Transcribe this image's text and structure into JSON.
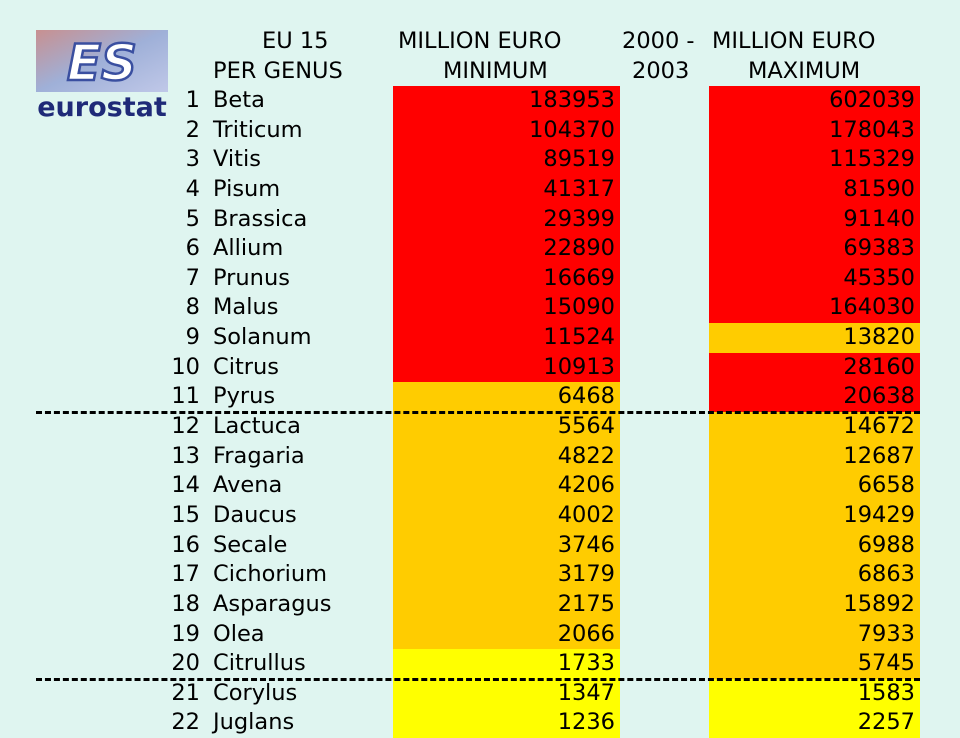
{
  "logo": {
    "text": "eurostat",
    "mark": "ES"
  },
  "headers": {
    "genus_line1": "EU 15",
    "genus_line2": "PER GENUS",
    "min_line1": "MILLION EURO",
    "min_line2": "MINIMUM",
    "period_line1": "2000 -",
    "period_line2": "2003",
    "max_line1": "MILLION EURO",
    "max_line2": "MAXIMUM"
  },
  "colors": {
    "background": "#dff5f0",
    "red": "#ff0000",
    "orange": "#ffcc00",
    "yellow": "#ffff00"
  },
  "rows": [
    {
      "rank": "1",
      "genus": "Beta",
      "min": "183953",
      "max": "602039",
      "min_color": "red",
      "max_color": "red"
    },
    {
      "rank": "2",
      "genus": "Triticum",
      "min": "104370",
      "max": "178043",
      "min_color": "red",
      "max_color": "red"
    },
    {
      "rank": "3",
      "genus": "Vitis",
      "min": "89519",
      "max": "115329",
      "min_color": "red",
      "max_color": "red"
    },
    {
      "rank": "4",
      "genus": "Pisum",
      "min": "41317",
      "max": "81590",
      "min_color": "red",
      "max_color": "red"
    },
    {
      "rank": "5",
      "genus": "Brassica",
      "min": "29399",
      "max": "91140",
      "min_color": "red",
      "max_color": "red"
    },
    {
      "rank": "6",
      "genus": "Allium",
      "min": "22890",
      "max": "69383",
      "min_color": "red",
      "max_color": "red"
    },
    {
      "rank": "7",
      "genus": "Prunus",
      "min": "16669",
      "max": "45350",
      "min_color": "red",
      "max_color": "red"
    },
    {
      "rank": "8",
      "genus": "Malus",
      "min": "15090",
      "max": "164030",
      "min_color": "red",
      "max_color": "red"
    },
    {
      "rank": "9",
      "genus": "Solanum",
      "min": "11524",
      "max": "13820",
      "min_color": "red",
      "max_color": "orange"
    },
    {
      "rank": "10",
      "genus": "Citrus",
      "min": "10913",
      "max": "28160",
      "min_color": "red",
      "max_color": "red"
    },
    {
      "rank": "11",
      "genus": "Pyrus",
      "min": "6468",
      "max": "20638",
      "min_color": "orange",
      "max_color": "red"
    },
    {
      "rank": "12",
      "genus": "Lactuca",
      "min": "5564",
      "max": "14672",
      "min_color": "orange",
      "max_color": "orange"
    },
    {
      "rank": "13",
      "genus": "Fragaria",
      "min": "4822",
      "max": "12687",
      "min_color": "orange",
      "max_color": "orange"
    },
    {
      "rank": "14",
      "genus": "Avena",
      "min": "4206",
      "max": "6658",
      "min_color": "orange",
      "max_color": "orange"
    },
    {
      "rank": "15",
      "genus": "Daucus",
      "min": "4002",
      "max": "19429",
      "min_color": "orange",
      "max_color": "orange"
    },
    {
      "rank": "16",
      "genus": "Secale",
      "min": "3746",
      "max": "6988",
      "min_color": "orange",
      "max_color": "orange"
    },
    {
      "rank": "17",
      "genus": "Cichorium",
      "min": "3179",
      "max": "6863",
      "min_color": "orange",
      "max_color": "orange"
    },
    {
      "rank": "18",
      "genus": "Asparagus",
      "min": "2175",
      "max": "15892",
      "min_color": "orange",
      "max_color": "orange"
    },
    {
      "rank": "19",
      "genus": "Olea",
      "min": "2066",
      "max": "7933",
      "min_color": "orange",
      "max_color": "orange"
    },
    {
      "rank": "20",
      "genus": "Citrullus",
      "min": "1733",
      "max": "5745",
      "min_color": "yellow",
      "max_color": "orange"
    },
    {
      "rank": "21",
      "genus": "Corylus",
      "min": "1347",
      "max": "1583",
      "min_color": "yellow",
      "max_color": "yellow"
    },
    {
      "rank": "22",
      "genus": "Juglans",
      "min": "1236",
      "max": "2257",
      "min_color": "yellow",
      "max_color": "yellow"
    }
  ],
  "dividers_after_rank": [
    "11",
    "20"
  ]
}
